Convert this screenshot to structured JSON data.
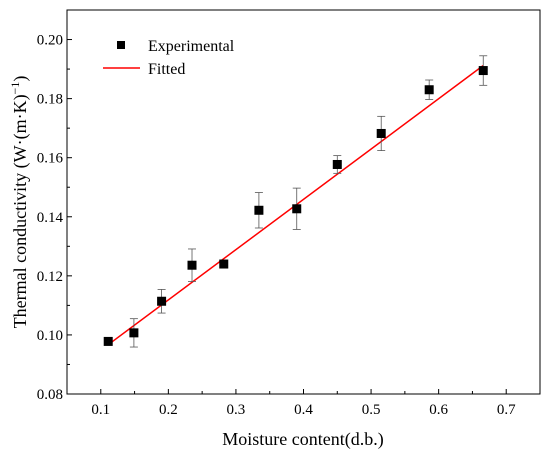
{
  "chart_data": {
    "type": "scatter",
    "title": "",
    "xlabel": "Moisture content(d.b.)",
    "ylabel_main": "Thermal conductivity (W·(m·K)",
    "ylabel_sup": "−1",
    "ylabel_close": ")",
    "xlim": [
      0.05,
      0.75
    ],
    "ylim": [
      0.08,
      0.21
    ],
    "xticks": [
      "0.1",
      "0.2",
      "0.3",
      "0.4",
      "0.5",
      "0.6",
      "0.7"
    ],
    "yticks": [
      "0.08",
      "0.10",
      "0.12",
      "0.14",
      "0.16",
      "0.18",
      "0.20"
    ],
    "legend_position": "top-left",
    "grid": false,
    "series": [
      {
        "name": "Experimental",
        "kind": "points-with-error-bars",
        "color": "#000000",
        "x": [
          0.111,
          0.149,
          0.19,
          0.235,
          0.282,
          0.334,
          0.39,
          0.45,
          0.515,
          0.586,
          0.666
        ],
        "y": [
          0.0978,
          0.1007,
          0.1114,
          0.1236,
          0.124,
          0.1422,
          0.1427,
          0.1577,
          0.1682,
          0.183,
          0.1895
        ],
        "err": [
          0.0005,
          0.0048,
          0.004,
          0.0055,
          0.001,
          0.006,
          0.007,
          0.003,
          0.0058,
          0.0033,
          0.005
        ]
      },
      {
        "name": "Fitted",
        "kind": "line",
        "color": "#ff0000",
        "x": [
          0.111,
          0.666
        ],
        "y": [
          0.0967,
          0.1912
        ]
      }
    ]
  }
}
